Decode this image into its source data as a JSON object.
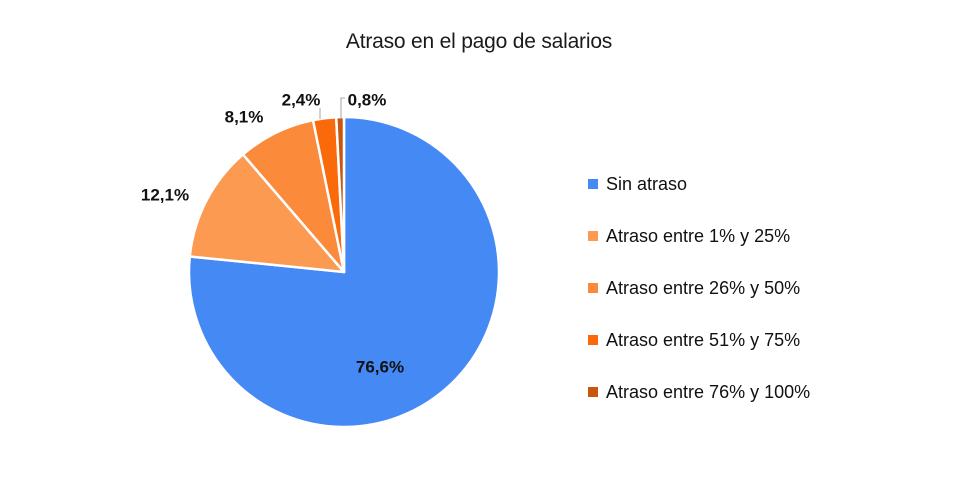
{
  "chart_data": {
    "type": "pie",
    "title": "Atraso en el pago de salarios",
    "categories": [
      "Sin atraso",
      "Atraso entre 1% y 25%",
      "Atraso entre 26% y 50%",
      "Atraso entre 51% y 75%",
      "Atraso entre 76% y 100%"
    ],
    "values": [
      76.6,
      12.1,
      8.1,
      2.4,
      0.8
    ],
    "data_labels": [
      "76,6%",
      "12,1%",
      "8,1%",
      "2,4%",
      "0,8%"
    ],
    "colors": [
      "#4589f5",
      "#fb9a50",
      "#fb8a3a",
      "#fb6a0a",
      "#c8560e"
    ],
    "legend_position": "right"
  }
}
